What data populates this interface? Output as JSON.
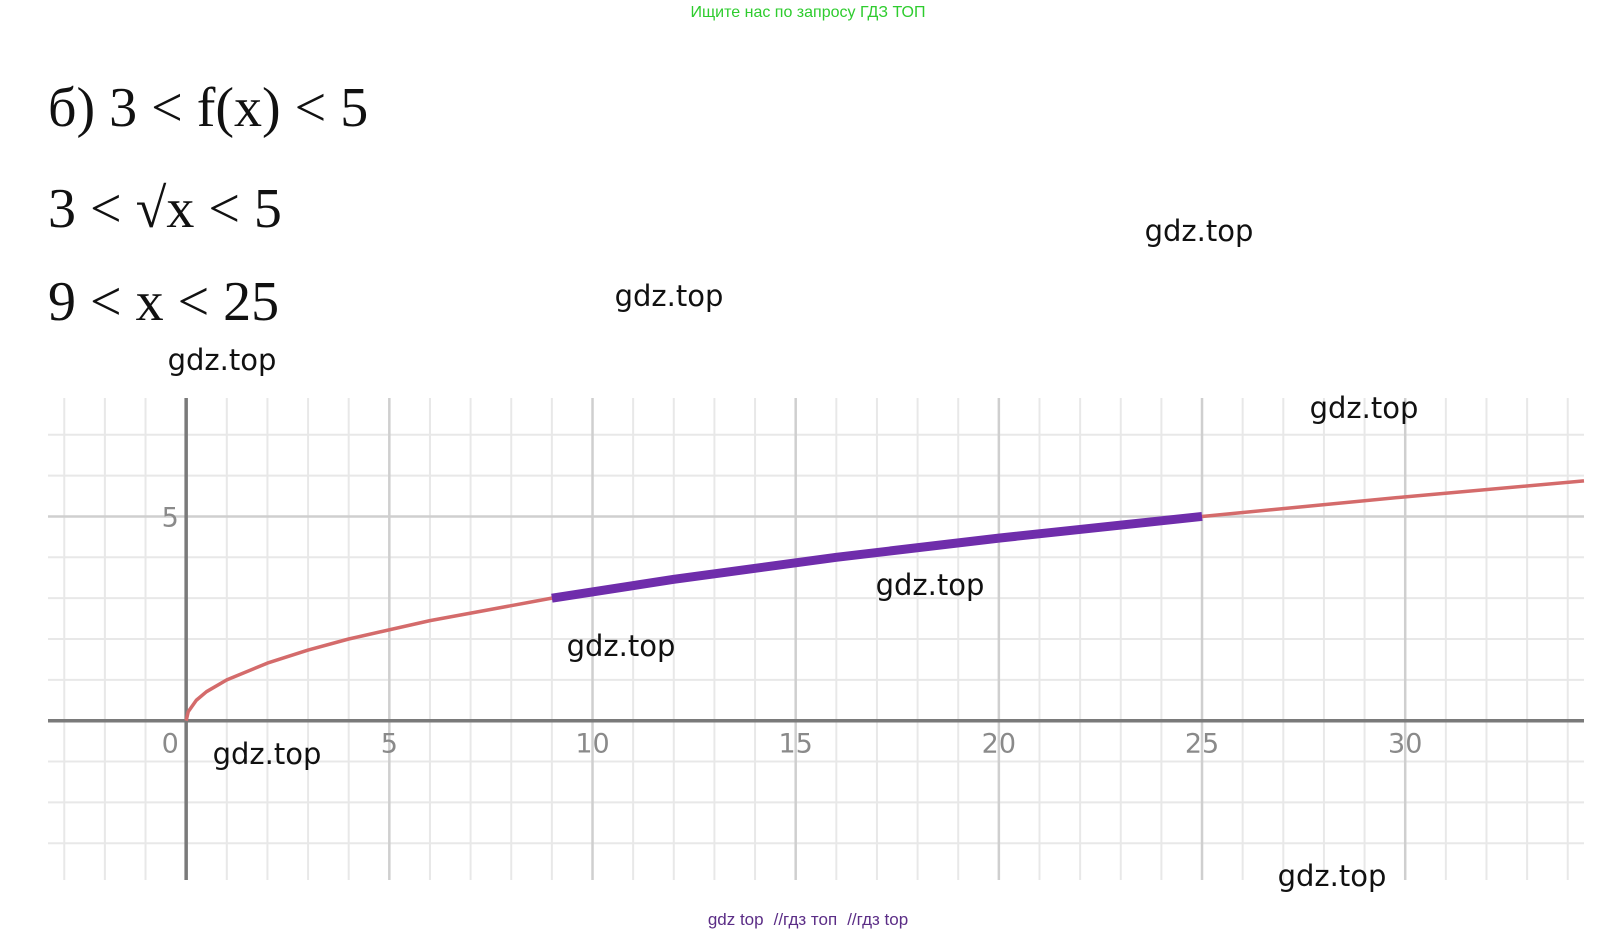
{
  "header": {
    "text": "Ищите нас по запросу ГДЗ ТОП"
  },
  "solution": {
    "lines": [
      "б) 3 < f(x) < 5",
      "3 < √x < 5",
      "9 < x < 25"
    ]
  },
  "watermarks": [
    "gdz.top",
    "gdz.top",
    "gdz.top",
    "gdz.top",
    "gdz.top",
    "gdz.top",
    "gdz.top",
    "gdz.top"
  ],
  "chart_data": {
    "type": "line",
    "x": [
      0,
      0.05,
      0.25,
      0.5,
      1,
      2,
      3,
      4,
      6,
      9,
      12,
      16,
      20,
      25,
      30,
      34.4
    ],
    "series": [
      {
        "color": "#d46b6b",
        "values": [
          0,
          0.22,
          0.5,
          0.71,
          1,
          1.41,
          1.73,
          2,
          2.45,
          3,
          3.46,
          4,
          4.47,
          5,
          5.48,
          5.87
        ]
      },
      {
        "color": "#6f2dab",
        "values": [
          null,
          null,
          null,
          null,
          null,
          null,
          null,
          null,
          null,
          3,
          3.46,
          4,
          4.47,
          5,
          null,
          null
        ]
      }
    ],
    "xlim": [
      -3.4,
      34.4
    ],
    "ylim": [
      -3.9,
      7.9
    ],
    "xticks": [
      0,
      5,
      10,
      15,
      20,
      25,
      30
    ],
    "yticks": [
      5
    ],
    "grid": true
  },
  "footer": {
    "links": [
      "gdz top",
      "гдз топ",
      "гдз top"
    ],
    "separator": "//"
  }
}
